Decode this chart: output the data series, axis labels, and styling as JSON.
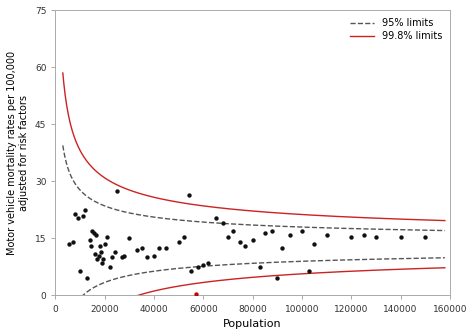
{
  "title": "",
  "xlabel": "Population",
  "ylabel": "Motor vehicle mortality rates per 100,000\nadjusted for risk factors",
  "xlim": [
    0,
    160000
  ],
  "ylim": [
    0,
    75
  ],
  "yticks": [
    0,
    15,
    30,
    45,
    60,
    75
  ],
  "xticks": [
    0,
    20000,
    40000,
    60000,
    80000,
    100000,
    120000,
    140000,
    160000
  ],
  "xtick_labels": [
    "0",
    "20000",
    "40000",
    "60000",
    "80000",
    "100000",
    "120000",
    "140000",
    "160000"
  ],
  "scatter_points": [
    [
      5500,
      13.5
    ],
    [
      7000,
      14.0
    ],
    [
      8000,
      21.5
    ],
    [
      9000,
      20.5
    ],
    [
      10000,
      6.5
    ],
    [
      11000,
      21.0
    ],
    [
      12000,
      22.5
    ],
    [
      13000,
      4.5
    ],
    [
      14000,
      14.5
    ],
    [
      14500,
      13.0
    ],
    [
      15000,
      17.0
    ],
    [
      15500,
      16.5
    ],
    [
      16000,
      11.0
    ],
    [
      16500,
      16.0
    ],
    [
      17000,
      9.5
    ],
    [
      17500,
      10.5
    ],
    [
      18000,
      13.0
    ],
    [
      18500,
      11.5
    ],
    [
      19000,
      8.5
    ],
    [
      19500,
      9.5
    ],
    [
      20000,
      13.5
    ],
    [
      21000,
      15.5
    ],
    [
      22000,
      7.5
    ],
    [
      23000,
      10.0
    ],
    [
      24000,
      11.5
    ],
    [
      25000,
      27.5
    ],
    [
      27000,
      10.0
    ],
    [
      28000,
      10.5
    ],
    [
      30000,
      15.0
    ],
    [
      33000,
      12.0
    ],
    [
      35000,
      12.5
    ],
    [
      37000,
      10.0
    ],
    [
      40000,
      10.5
    ],
    [
      42000,
      12.5
    ],
    [
      45000,
      12.5
    ],
    [
      50000,
      14.0
    ],
    [
      52000,
      15.5
    ],
    [
      54000,
      26.5
    ],
    [
      55000,
      6.5
    ],
    [
      57000,
      0.5
    ],
    [
      58000,
      7.5
    ],
    [
      60000,
      8.0
    ],
    [
      62000,
      8.5
    ],
    [
      65000,
      20.5
    ],
    [
      68000,
      19.0
    ],
    [
      70000,
      15.5
    ],
    [
      72000,
      17.0
    ],
    [
      75000,
      14.0
    ],
    [
      77000,
      13.0
    ],
    [
      80000,
      14.5
    ],
    [
      83000,
      7.5
    ],
    [
      85000,
      16.5
    ],
    [
      88000,
      17.0
    ],
    [
      90000,
      4.5
    ],
    [
      92000,
      12.5
    ],
    [
      95000,
      16.0
    ],
    [
      100000,
      17.0
    ],
    [
      103000,
      6.5
    ],
    [
      105000,
      13.5
    ],
    [
      110000,
      16.0
    ],
    [
      120000,
      15.5
    ],
    [
      125000,
      16.0
    ],
    [
      130000,
      15.5
    ],
    [
      140000,
      15.5
    ],
    [
      150000,
      15.5
    ]
  ],
  "outlier_point": [
    57000,
    0.5
  ],
  "theta": 13.5,
  "phi_95": 4.5,
  "phi_99": 7.8,
  "x_start": 3000,
  "x_end": 158000,
  "bg_color": "#ffffff",
  "scatter_color": "#111111",
  "outlier_color": "#cc0000",
  "line_95_color": "#555555",
  "line_99_color": "#cc2222",
  "legend_95_label": "95% limits",
  "legend_99_label": "99.8% limits",
  "spine_color": "#aaaaaa",
  "tick_label_color": "#333333"
}
